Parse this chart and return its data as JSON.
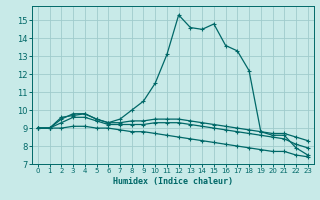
{
  "xlabel": "Humidex (Indice chaleur)",
  "bg_color": "#c8eae8",
  "grid_color": "#a0cccc",
  "line_color": "#006868",
  "xlim": [
    -0.5,
    23.5
  ],
  "ylim": [
    7,
    15.8
  ],
  "xticks": [
    0,
    1,
    2,
    3,
    4,
    5,
    6,
    7,
    8,
    9,
    10,
    11,
    12,
    13,
    14,
    15,
    16,
    17,
    18,
    19,
    20,
    21,
    22,
    23
  ],
  "yticks": [
    7,
    8,
    9,
    10,
    11,
    12,
    13,
    14,
    15
  ],
  "line1_x": [
    0,
    1,
    2,
    3,
    4,
    5,
    6,
    7,
    8,
    9,
    10,
    11,
    12,
    13,
    14,
    15,
    16,
    17,
    18,
    19,
    20,
    21,
    22,
    23
  ],
  "line1_y": [
    9.0,
    9.0,
    9.6,
    9.7,
    9.8,
    9.5,
    9.3,
    9.5,
    10.0,
    10.5,
    11.5,
    13.1,
    15.3,
    14.6,
    14.5,
    14.8,
    13.6,
    13.3,
    12.2,
    8.8,
    8.6,
    8.6,
    7.9,
    7.5
  ],
  "line2_x": [
    0,
    1,
    2,
    3,
    4,
    5,
    6,
    7,
    8,
    9,
    10,
    11,
    12,
    13,
    14,
    15,
    16,
    17,
    18,
    19,
    20,
    21,
    22,
    23
  ],
  "line2_y": [
    9.0,
    9.0,
    9.5,
    9.8,
    9.8,
    9.5,
    9.3,
    9.3,
    9.4,
    9.4,
    9.5,
    9.5,
    9.5,
    9.4,
    9.3,
    9.2,
    9.1,
    9.0,
    8.9,
    8.8,
    8.7,
    8.7,
    8.5,
    8.3
  ],
  "line3_x": [
    0,
    1,
    2,
    3,
    4,
    5,
    6,
    7,
    8,
    9,
    10,
    11,
    12,
    13,
    14,
    15,
    16,
    17,
    18,
    19,
    20,
    21,
    22,
    23
  ],
  "line3_y": [
    9.0,
    9.0,
    9.3,
    9.6,
    9.6,
    9.4,
    9.2,
    9.2,
    9.2,
    9.2,
    9.3,
    9.3,
    9.3,
    9.2,
    9.1,
    9.0,
    8.9,
    8.8,
    8.7,
    8.6,
    8.5,
    8.4,
    8.1,
    7.9
  ],
  "line4_x": [
    0,
    1,
    2,
    3,
    4,
    5,
    6,
    7,
    8,
    9,
    10,
    11,
    12,
    13,
    14,
    15,
    16,
    17,
    18,
    19,
    20,
    21,
    22,
    23
  ],
  "line4_y": [
    9.0,
    9.0,
    9.0,
    9.1,
    9.1,
    9.0,
    9.0,
    8.9,
    8.8,
    8.8,
    8.7,
    8.6,
    8.5,
    8.4,
    8.3,
    8.2,
    8.1,
    8.0,
    7.9,
    7.8,
    7.7,
    7.7,
    7.5,
    7.4
  ]
}
